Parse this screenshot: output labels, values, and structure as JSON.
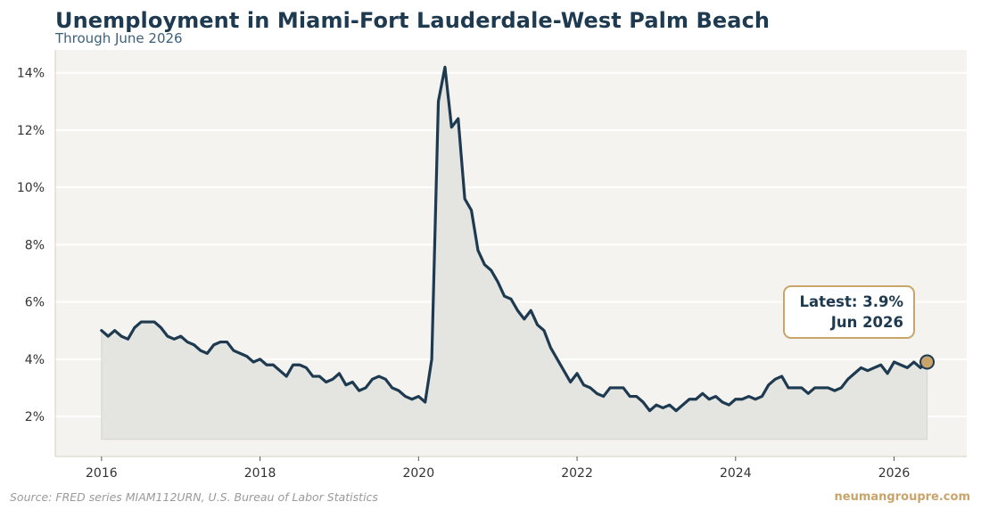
{
  "header": {
    "title": "Unemployment in Miami-Fort Lauderdale-West Palm Beach",
    "subtitle": "Through June 2026"
  },
  "footer": {
    "source": "Source: FRED series MIAM112URN, U.S. Bureau of Labor Statistics",
    "brand": "neumangroupre.com"
  },
  "callout": {
    "line1": "Latest: 3.9%",
    "line2": "Jun 2026"
  },
  "colors": {
    "line": "#1e3a50",
    "plot_bg": "#f5f3ef",
    "area_fill": "#e4e4e1",
    "gridline": "#ffffff",
    "accent_gold": "#c9a46b"
  },
  "chart_data": {
    "type": "line",
    "title": "Unemployment in Miami-Fort Lauderdale-West Palm Beach",
    "subtitle": "Through June 2026",
    "xlabel": "",
    "ylabel": "",
    "x_ticks": [
      "2016",
      "2018",
      "2020",
      "2022",
      "2024",
      "2026"
    ],
    "y_ticks": [
      "2%",
      "4%",
      "6%",
      "8%",
      "10%",
      "12%",
      "14%"
    ],
    "ylim": [
      0.6,
      14.8
    ],
    "xlim": [
      "2015-06",
      "2026-12"
    ],
    "grid": "horizontal",
    "area_fill": true,
    "series": [
      {
        "start": "2016-01",
        "frequency": "monthly",
        "values": [
          5.0,
          4.8,
          5.0,
          4.8,
          4.7,
          5.1,
          5.3,
          5.3,
          5.3,
          5.1,
          4.8,
          4.7,
          4.8,
          4.6,
          4.5,
          4.3,
          4.2,
          4.5,
          4.6,
          4.6,
          4.3,
          4.2,
          4.1,
          3.9,
          4.0,
          3.8,
          3.8,
          3.6,
          3.4,
          3.8,
          3.8,
          3.7,
          3.4,
          3.4,
          3.2,
          3.3,
          3.5,
          3.1,
          3.2,
          2.9,
          3.0,
          3.3,
          3.4,
          3.3,
          3.0,
          2.9,
          2.7,
          2.6,
          2.7,
          2.5,
          4.0,
          13.0,
          14.2,
          12.1,
          12.4,
          9.6,
          9.2,
          7.8,
          7.3,
          7.1,
          6.7,
          6.2,
          6.1,
          5.7,
          5.4,
          5.7,
          5.2,
          5.0,
          4.4,
          4.0,
          3.6,
          3.2,
          3.5,
          3.1,
          3.0,
          2.8,
          2.7,
          3.0,
          3.0,
          3.0,
          2.7,
          2.7,
          2.5,
          2.2,
          2.4,
          2.3,
          2.4,
          2.2,
          2.4,
          2.6,
          2.6,
          2.8,
          2.6,
          2.7,
          2.5,
          2.4,
          2.6,
          2.6,
          2.7,
          2.6,
          2.7,
          3.1,
          3.3,
          3.4,
          3.0,
          3.0,
          3.0,
          2.8,
          3.0,
          3.0,
          3.0,
          2.9,
          3.0,
          3.3,
          3.5,
          3.7,
          3.6,
          3.7,
          3.8,
          3.5,
          3.9,
          3.8,
          3.7,
          3.9,
          3.7,
          3.9
        ]
      }
    ],
    "latest": {
      "label": "Jun 2026",
      "value": 3.9
    }
  }
}
